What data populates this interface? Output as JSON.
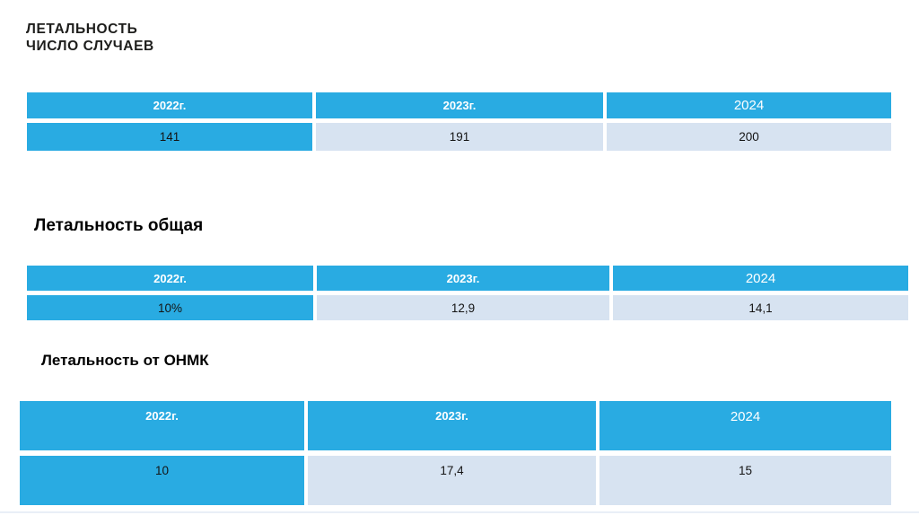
{
  "slide": {
    "title_line1": "ЛЕТАЛЬНОСТЬ",
    "title_line2": "ЧИСЛО СЛУЧАЕВ"
  },
  "sections": {
    "overall_title": "Летальность общая",
    "onmk_title": "Летальность от ОНМК"
  },
  "tables": [
    {
      "name": "число случаев",
      "headers": [
        "2022г.",
        "2023г.",
        "2024"
      ],
      "values": [
        "141",
        "191",
        "200"
      ]
    },
    {
      "name": "летальность общая",
      "headers": [
        "2022г.",
        "2023г.",
        "2024"
      ],
      "values": [
        "10%",
        "12,9",
        "14,1"
      ]
    },
    {
      "name": "летальность от ОНМК",
      "headers": [
        "2022г.",
        "2023г.",
        "2024"
      ],
      "values": [
        "10",
        "17,4",
        "15"
      ]
    }
  ],
  "colors": {
    "accent_blue": "#29abe2",
    "light_cell": "#d7e3f1",
    "header_text": "#ffffff",
    "body_text": "#141414"
  }
}
